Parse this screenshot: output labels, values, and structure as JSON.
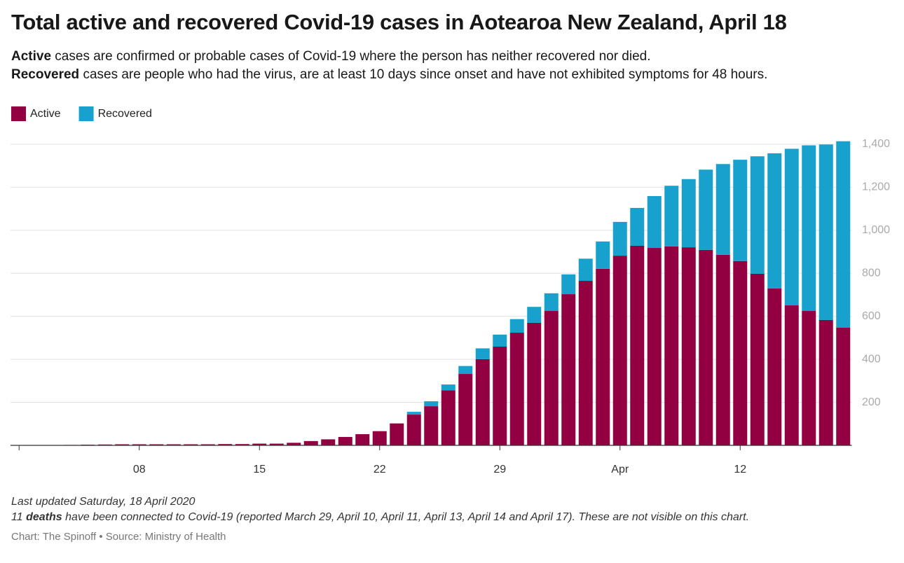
{
  "chart_data": {
    "type": "stacked_bar",
    "title": "Total active and recovered Covid-19 cases in Aotearoa New Zealand, April 18",
    "subtitle": [
      {
        "bold": "Active",
        "text": " cases are confirmed or probable cases of Covid-19 where the person has neither recovered nor died."
      },
      {
        "bold": "Recovered",
        "text": " cases are people who had the virus, are at least 10 days since onset and have not exhibited symptoms for 48 hours."
      }
    ],
    "categories": [
      null,
      null,
      null,
      null,
      null,
      null,
      null,
      "08",
      null,
      null,
      null,
      null,
      null,
      null,
      "15",
      null,
      null,
      null,
      null,
      null,
      null,
      "22",
      null,
      null,
      null,
      null,
      null,
      null,
      "29",
      null,
      null,
      null,
      null,
      null,
      null,
      "Apr",
      null,
      null,
      null,
      null,
      null,
      null,
      "12",
      null,
      null,
      null,
      null,
      null,
      null
    ],
    "series": [
      {
        "name": "Active",
        "color": "#930042",
        "values": [
          1,
          1,
          1,
          2,
          3,
          4,
          5,
          5,
          5,
          5,
          5,
          5,
          6,
          6,
          8,
          8,
          12,
          20,
          28,
          39,
          52,
          66,
          102,
          143,
          182,
          256,
          332,
          401,
          459,
          524,
          570,
          625,
          703,
          765,
          821,
          882,
          928,
          918,
          925,
          921,
          909,
          886,
          857,
          798,
          730,
          651,
          625,
          583,
          547
        ]
      },
      {
        "name": "Recovered",
        "color": "#18a1cd",
        "values": [
          0,
          0,
          0,
          0,
          0,
          0,
          0,
          0,
          0,
          0,
          0,
          0,
          0,
          0,
          0,
          0,
          0,
          0,
          0,
          0,
          0,
          0,
          0,
          13,
          23,
          27,
          37,
          50,
          56,
          63,
          74,
          82,
          92,
          103,
          127,
          157,
          176,
          241,
          282,
          317,
          373,
          422,
          471,
          546,
          628,
          728,
          770,
          816,
          867
        ]
      }
    ],
    "ylim": [
      0,
      1400
    ],
    "yticks": [
      {
        "value": 200,
        "label": "200"
      },
      {
        "value": 400,
        "label": "400"
      },
      {
        "value": 600,
        "label": "600"
      },
      {
        "value": 800,
        "label": "800"
      },
      {
        "value": 1000,
        "label": "1,000"
      },
      {
        "value": 1200,
        "label": "1,200"
      },
      {
        "value": 1400,
        "label": "1,400"
      }
    ],
    "grid": true,
    "legend": "top-left",
    "notes": {
      "updated": "Last updated Saturday, 18 April 2020",
      "deaths_pre": "11 ",
      "deaths_bold": "deaths",
      "deaths_post": " have been connected to Covid-19 (reported March 29, April 10, April 11, April 13, April 14 and April 17). These are not visible on this chart.",
      "credit": "Chart: The Spinoff • Source: Ministry of Health"
    }
  }
}
